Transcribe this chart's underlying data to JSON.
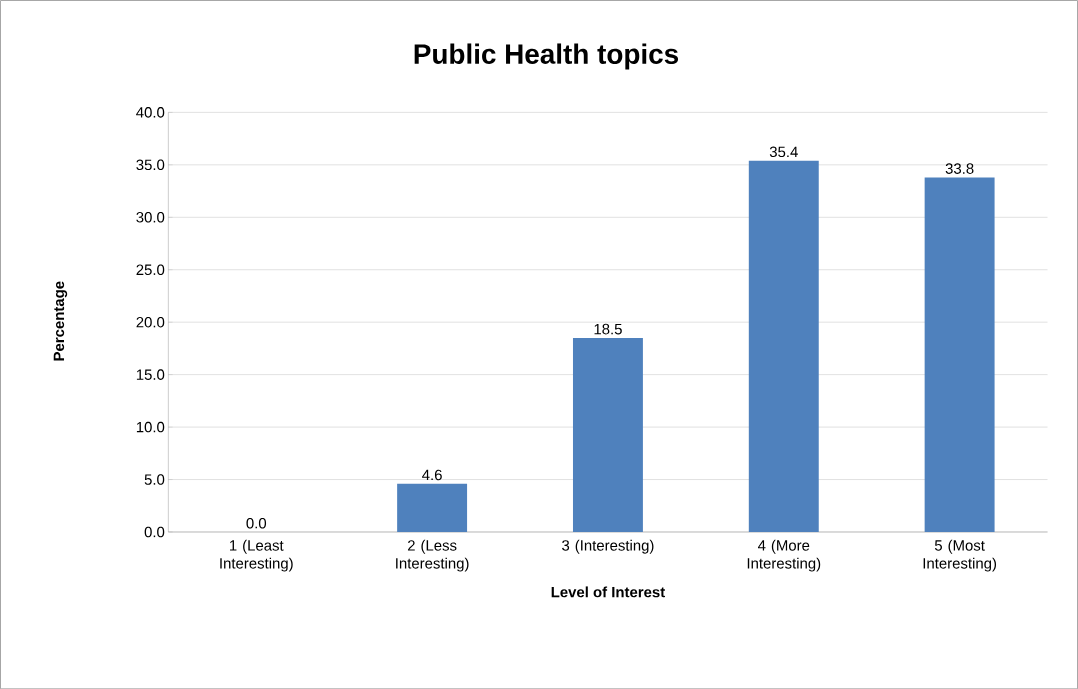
{
  "chart_data": {
    "type": "bar",
    "title": "Public Health topics",
    "xlabel": "Level of Interest",
    "ylabel": "Percentage",
    "categories": [
      "1 (Least Interesting)",
      "2 (Less Interesting)",
      "3 (Interesting)",
      "4 (More Interesting)",
      "5 (Most Interesting)"
    ],
    "values": [
      0.0,
      4.6,
      18.5,
      35.4,
      33.8
    ],
    "value_labels": [
      "0.0",
      "4.6",
      "18.5",
      "35.4",
      "33.8"
    ],
    "color": "#4f81bd",
    "ylim": [
      0,
      40
    ],
    "yticks": [
      {
        "value": 0,
        "label": "0.0"
      },
      {
        "value": 5,
        "label": "5.0"
      },
      {
        "value": 10,
        "label": "10.0"
      },
      {
        "value": 15,
        "label": "15.0"
      },
      {
        "value": 20,
        "label": "20.0"
      },
      {
        "value": 25,
        "label": "25.0"
      },
      {
        "value": 30,
        "label": "30.0"
      },
      {
        "value": 35,
        "label": "35.0"
      },
      {
        "value": 40,
        "label": "40.0"
      }
    ],
    "grid": "y"
  }
}
